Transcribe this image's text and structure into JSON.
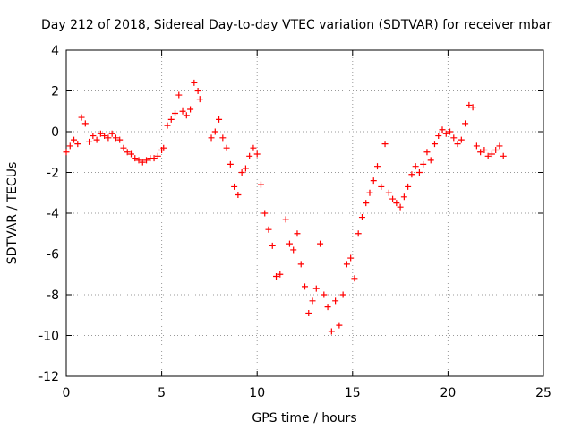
{
  "chart_data": {
    "type": "scatter",
    "title": "Day 212 of 2018, Sidereal Day-to-day VTEC variation (SDTVAR) for receiver mbar",
    "xlabel": "GPS time / hours",
    "ylabel": "SDTVAR / TECUs",
    "xlim": [
      0,
      25
    ],
    "ylim": [
      -12,
      4
    ],
    "xticks": [
      "0",
      "5",
      "10",
      "15",
      "20",
      "25"
    ],
    "yticks": [
      "4",
      "2",
      "0",
      "-2",
      "-4",
      "-6",
      "-8",
      "-10",
      "-12"
    ],
    "grid": true,
    "marker": "+",
    "series": [
      {
        "name": "SDTVAR",
        "color": "#ff0000",
        "x": [
          0.0,
          0.2,
          0.4,
          0.6,
          0.8,
          1.0,
          1.2,
          1.4,
          1.6,
          1.8,
          2.0,
          2.2,
          2.4,
          2.6,
          2.8,
          3.0,
          3.2,
          3.4,
          3.6,
          3.8,
          4.0,
          4.2,
          4.4,
          4.6,
          4.8,
          5.0,
          5.1,
          5.3,
          5.5,
          5.7,
          5.9,
          6.1,
          6.3,
          6.5,
          6.7,
          6.9,
          7.0,
          7.6,
          7.8,
          8.0,
          8.2,
          8.4,
          8.6,
          8.8,
          9.0,
          9.2,
          9.4,
          9.6,
          9.8,
          10.0,
          10.2,
          10.4,
          10.6,
          10.8,
          11.0,
          11.2,
          11.5,
          11.7,
          11.9,
          12.1,
          12.3,
          12.5,
          12.7,
          12.9,
          13.1,
          13.3,
          13.5,
          13.7,
          13.9,
          14.1,
          14.3,
          14.5,
          14.7,
          14.9,
          15.1,
          15.3,
          15.5,
          15.7,
          15.9,
          16.1,
          16.3,
          16.5,
          16.7,
          16.9,
          17.1,
          17.3,
          17.5,
          17.7,
          17.9,
          18.1,
          18.3,
          18.5,
          18.7,
          18.9,
          19.1,
          19.3,
          19.5,
          19.7,
          19.9,
          20.1,
          20.3,
          20.5,
          20.7,
          20.9,
          21.1,
          21.3,
          21.5,
          21.7,
          21.9,
          22.1,
          22.3,
          22.5,
          22.7,
          22.9
        ],
        "y": [
          -1.0,
          -0.7,
          -0.4,
          -0.6,
          0.7,
          0.4,
          -0.5,
          -0.2,
          -0.4,
          -0.1,
          -0.2,
          -0.3,
          -0.1,
          -0.3,
          -0.4,
          -0.8,
          -1.0,
          -1.1,
          -1.3,
          -1.4,
          -1.5,
          -1.4,
          -1.3,
          -1.3,
          -1.2,
          -0.9,
          -0.8,
          0.3,
          0.6,
          0.9,
          1.8,
          1.0,
          0.8,
          1.1,
          2.4,
          2.0,
          1.6,
          -0.3,
          0.0,
          0.6,
          -0.3,
          -0.8,
          -1.6,
          -2.7,
          -3.1,
          -2.0,
          -1.8,
          -1.2,
          -0.8,
          -1.1,
          -2.6,
          -4.0,
          -4.8,
          -5.6,
          -7.1,
          -7.0,
          -4.3,
          -5.5,
          -5.8,
          -5.0,
          -6.5,
          -7.6,
          -8.9,
          -8.3,
          -7.7,
          -5.5,
          -8.0,
          -8.6,
          -9.8,
          -8.3,
          -9.5,
          -8.0,
          -6.5,
          -6.2,
          -7.2,
          -5.0,
          -4.2,
          -3.5,
          -3.0,
          -2.4,
          -1.7,
          -2.7,
          -0.6,
          -3.0,
          -3.3,
          -3.5,
          -3.7,
          -3.2,
          -2.7,
          -2.1,
          -1.7,
          -2.0,
          -1.6,
          -1.0,
          -1.4,
          -0.6,
          -0.2,
          0.1,
          -0.1,
          0.0,
          -0.3,
          -0.6,
          -0.4,
          0.4,
          1.3,
          1.2,
          -0.7,
          -1.0,
          -0.9,
          -1.2,
          -1.1,
          -0.9,
          -0.7,
          -1.2
        ]
      }
    ]
  }
}
